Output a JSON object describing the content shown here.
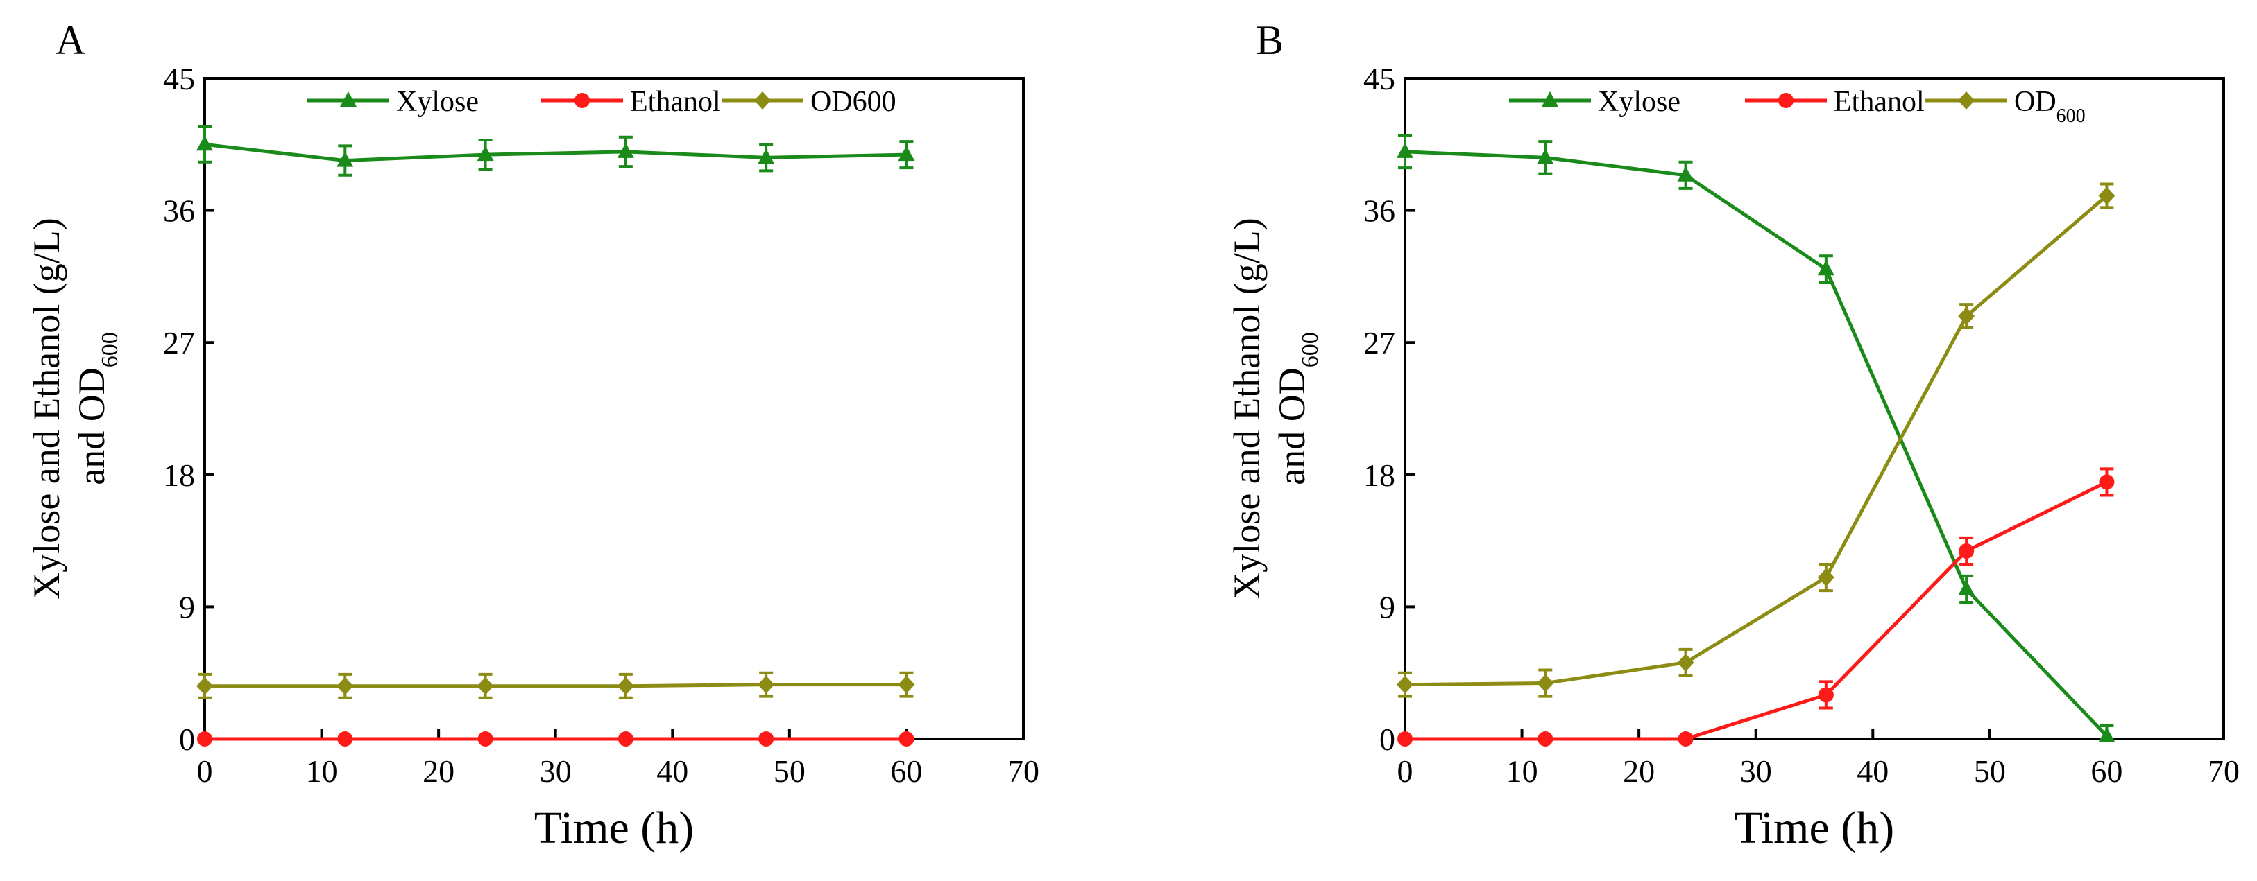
{
  "figure": {
    "colors": {
      "xylose": "#1a8a1a",
      "ethanol": "#ff1a1a",
      "od600": "#8c8c14",
      "axis": "#000000"
    }
  },
  "chart_data": [
    {
      "type": "line",
      "panel_label": "A",
      "title": "",
      "xlabel": "Time (h)",
      "ylabel_line1": "Xylose and Ethanol (g/L)",
      "ylabel_line2_prefix": "and OD",
      "ylabel_line2_sub": "600",
      "xlim": [
        0,
        70
      ],
      "ylim": [
        0,
        45
      ],
      "x_ticks": [
        0,
        10,
        20,
        30,
        40,
        50,
        60,
        70
      ],
      "y_ticks": [
        0,
        9,
        18,
        27,
        36,
        45
      ],
      "legend_position": "top",
      "x": [
        0,
        12,
        24,
        36,
        48,
        60
      ],
      "series": [
        {
          "key": "xylose",
          "name": "Xylose",
          "marker": "triangle",
          "values": [
            40.5,
            39.4,
            39.8,
            40.0,
            39.6,
            39.8
          ],
          "errors": [
            1.2,
            1.0,
            1.0,
            1.0,
            0.9,
            0.9
          ]
        },
        {
          "key": "ethanol",
          "name": "Ethanol",
          "marker": "circle",
          "values": [
            0,
            0,
            0,
            0,
            0,
            0
          ],
          "errors": [
            0,
            0,
            0,
            0,
            0,
            0
          ]
        },
        {
          "key": "od600",
          "name": "OD600",
          "name_sub": "",
          "marker": "diamond",
          "values": [
            3.6,
            3.6,
            3.6,
            3.6,
            3.7,
            3.7
          ],
          "errors": [
            0.8,
            0.8,
            0.8,
            0.8,
            0.8,
            0.8
          ]
        }
      ]
    },
    {
      "type": "line",
      "panel_label": "B",
      "title": "",
      "xlabel": "Time (h)",
      "ylabel_line1": "Xylose and Ethanol (g/L)",
      "ylabel_line2_prefix": "and OD",
      "ylabel_line2_sub": "600",
      "xlim": [
        0,
        70
      ],
      "ylim": [
        0,
        45
      ],
      "x_ticks": [
        0,
        10,
        20,
        30,
        40,
        50,
        60,
        70
      ],
      "y_ticks": [
        0,
        9,
        18,
        27,
        36,
        45
      ],
      "legend_position": "top",
      "x": [
        0,
        12,
        24,
        36,
        48,
        60
      ],
      "series": [
        {
          "key": "xylose",
          "name": "Xylose",
          "marker": "triangle",
          "values": [
            40.0,
            39.6,
            38.4,
            32.0,
            10.2,
            0.2
          ],
          "errors": [
            1.1,
            1.1,
            0.9,
            0.9,
            0.9,
            0.7
          ]
        },
        {
          "key": "ethanol",
          "name": "Ethanol",
          "marker": "circle",
          "values": [
            0,
            0,
            0,
            3.0,
            12.8,
            17.5
          ],
          "errors": [
            0,
            0,
            0,
            0.9,
            0.9,
            0.9
          ]
        },
        {
          "key": "od600",
          "name": "OD",
          "name_sub": "600",
          "marker": "diamond",
          "values": [
            3.7,
            3.8,
            5.2,
            11.0,
            28.8,
            37.0
          ],
          "errors": [
            0.8,
            0.9,
            0.9,
            0.9,
            0.8,
            0.8
          ]
        }
      ]
    }
  ]
}
